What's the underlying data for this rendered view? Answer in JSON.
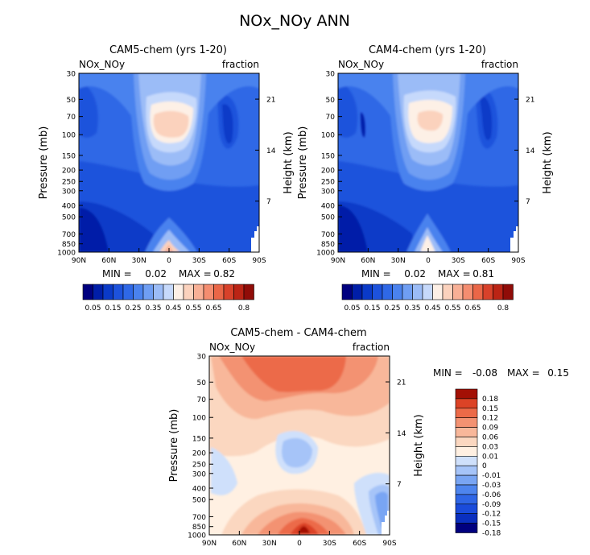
{
  "title": "NOx_NOy ANN",
  "chart_data": [
    {
      "type": "heatmap",
      "title": "CAM5-chem (yrs 1-20)",
      "variable": "NOx_NOy",
      "units": "fraction",
      "xlabel": "",
      "ylabel": "Pressure (mb)",
      "y2label": "Height (km)",
      "xticks": [
        "90N",
        "60N",
        "30N",
        "0",
        "30S",
        "60S",
        "90S"
      ],
      "yticks": [
        30,
        50,
        70,
        100,
        150,
        200,
        250,
        300,
        400,
        500,
        700,
        850,
        1000
      ],
      "y2ticks": [
        7,
        14,
        21
      ],
      "min_label": "MIN =",
      "min": "0.02",
      "max_label": "MAX =",
      "max": "0.82",
      "colorbar_ticks": [
        "0.05",
        "0.15",
        "0.25",
        "0.35",
        "0.45",
        "0.55",
        "0.65",
        "0.8"
      ]
    },
    {
      "type": "heatmap",
      "title": "CAM4-chem (yrs 1-20)",
      "variable": "NOx_NOy",
      "units": "fraction",
      "xlabel": "",
      "ylabel": "Pressure (mb)",
      "y2label": "Height (km)",
      "xticks": [
        "90N",
        "60N",
        "30N",
        "0",
        "30S",
        "60S",
        "90S"
      ],
      "yticks": [
        30,
        50,
        70,
        100,
        150,
        200,
        250,
        300,
        400,
        500,
        700,
        850,
        1000
      ],
      "y2ticks": [
        7,
        14,
        21
      ],
      "min_label": "MIN =",
      "min": "0.02",
      "max_label": "MAX =",
      "max": "0.81",
      "colorbar_ticks": [
        "0.05",
        "0.15",
        "0.25",
        "0.35",
        "0.45",
        "0.55",
        "0.65",
        "0.8"
      ]
    },
    {
      "type": "heatmap",
      "title": "CAM5-chem - CAM4-chem",
      "variable": "NOx_NOy",
      "units": "fraction",
      "xlabel": "",
      "ylabel": "Pressure (mb)",
      "y2label": "Height (km)",
      "xticks": [
        "90N",
        "60N",
        "30N",
        "0",
        "30S",
        "60S",
        "90S"
      ],
      "yticks": [
        30,
        50,
        70,
        100,
        150,
        200,
        250,
        300,
        400,
        500,
        700,
        850,
        1000
      ],
      "y2ticks": [
        7,
        14,
        21
      ],
      "min_label": "MIN =",
      "min": "-0.08",
      "max_label": "MAX =",
      "max": "0.15",
      "colorbar_ticks": [
        "0.18",
        "0.15",
        "0.12",
        "0.09",
        "0.06",
        "0.03",
        "0.01",
        "0",
        "-0.01",
        "-0.03",
        "-0.06",
        "-0.09",
        "-0.12",
        "-0.15",
        "-0.18"
      ]
    }
  ],
  "palettes": {
    "seq": [
      "#00007f",
      "#001ea8",
      "#0a3ac8",
      "#1d52dc",
      "#2f68e6",
      "#4a82ee",
      "#6f9ef3",
      "#9bbcf7",
      "#c6d9fb",
      "#fdf0e6",
      "#fbd2bd",
      "#f8b096",
      "#f48d70",
      "#ea6647",
      "#d8412a",
      "#bb2415",
      "#900c08"
    ],
    "div": [
      "#00007f",
      "#0a2fbf",
      "#1a4bdb",
      "#2f66e6",
      "#4e85ee",
      "#79a5f3",
      "#a6c4f8",
      "#cfe0fb",
      "#fff0e2",
      "#fbd7c0",
      "#f8b79a",
      "#f39272",
      "#ec6a48",
      "#dc4326",
      "#a31005"
    ]
  }
}
